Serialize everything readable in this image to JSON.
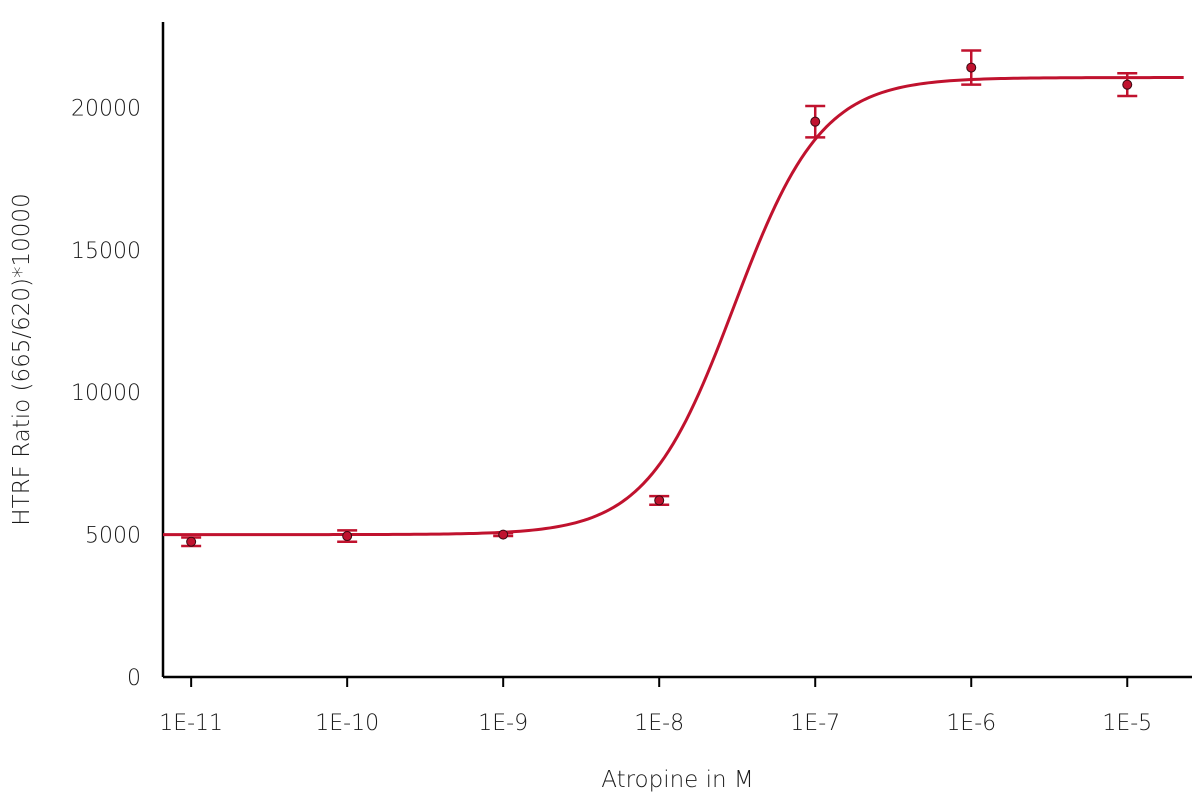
{
  "chart_data": {
    "type": "scatter",
    "title": "",
    "xlabel": "Atropine in M",
    "ylabel": "HTRF Ratio (665/620)*10000",
    "xscale": "log",
    "x_tick_labels": [
      "1E-11",
      "1E-10",
      "1E-9",
      "1E-8",
      "1E-7",
      "1E-6",
      "1E-5"
    ],
    "x_tick_values": [
      1e-11,
      1e-10,
      1e-09,
      1e-08,
      1e-07,
      1e-06,
      1e-05
    ],
    "y_tick_labels": [
      "0",
      "5000",
      "10000",
      "15000",
      "20000"
    ],
    "y_tick_values": [
      0,
      5000,
      10000,
      15000,
      20000
    ],
    "xlim": [
      6.6e-12,
      2.6e-05
    ],
    "ylim": [
      0,
      23000
    ],
    "grid": false,
    "color": "#c0122e",
    "series": [
      {
        "points": [
          {
            "x": 1e-11,
            "y": 4750,
            "err": 150
          },
          {
            "x": 1e-10,
            "y": 4950,
            "err": 200
          },
          {
            "x": 1e-09,
            "y": 5000,
            "err": 50
          },
          {
            "x": 1e-08,
            "y": 6200,
            "err": 150
          },
          {
            "x": 1e-07,
            "y": 19500,
            "err": 550
          },
          {
            "x": 1e-06,
            "y": 21400,
            "err": 600
          },
          {
            "x": 1e-05,
            "y": 20800,
            "err": 400
          }
        ],
        "fit": {
          "model": "4PL",
          "bottom": 5000,
          "top": 21050,
          "logEC50": -7.52,
          "hill": 1.55,
          "xrange": [
            6.6e-12,
            2.3e-05
          ]
        }
      }
    ]
  }
}
